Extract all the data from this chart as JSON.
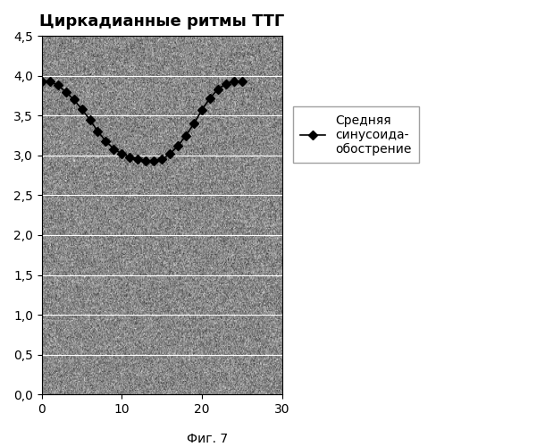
{
  "title": "Циркадианные ритмы ТТГ",
  "caption": "Фиг. 7",
  "x_values": [
    0,
    1,
    2,
    3,
    4,
    5,
    6,
    7,
    8,
    9,
    10,
    11,
    12,
    13,
    14,
    15,
    16,
    17,
    18,
    19,
    20,
    21,
    22,
    23,
    24,
    25
  ],
  "y_values": [
    3.93,
    3.93,
    3.88,
    3.8,
    3.7,
    3.58,
    3.45,
    3.3,
    3.18,
    3.08,
    3.02,
    2.98,
    2.95,
    2.93,
    2.93,
    2.95,
    3.02,
    3.12,
    3.25,
    3.4,
    3.57,
    3.72,
    3.83,
    3.9,
    3.93,
    3.93
  ],
  "xlim": [
    0,
    30
  ],
  "ylim": [
    0.0,
    4.5
  ],
  "xticks": [
    0,
    10,
    20,
    30
  ],
  "yticks": [
    0.0,
    0.5,
    1.0,
    1.5,
    2.0,
    2.5,
    3.0,
    3.5,
    4.0,
    4.5
  ],
  "ytick_labels": [
    "0,0",
    "0,5",
    "1,0",
    "1,5",
    "2,0",
    "2,5",
    "3,0",
    "3,5",
    "4,0",
    "4,5"
  ],
  "line_color": "#000000",
  "marker": "D",
  "marker_size": 5,
  "marker_facecolor": "#000000",
  "legend_label": "Средняя\nсинусоида-\nобострение",
  "grid_color": "#ffffff",
  "title_fontsize": 13,
  "tick_fontsize": 10,
  "legend_fontsize": 10,
  "caption_fontsize": 10,
  "fig_bg_color": "#ffffff"
}
